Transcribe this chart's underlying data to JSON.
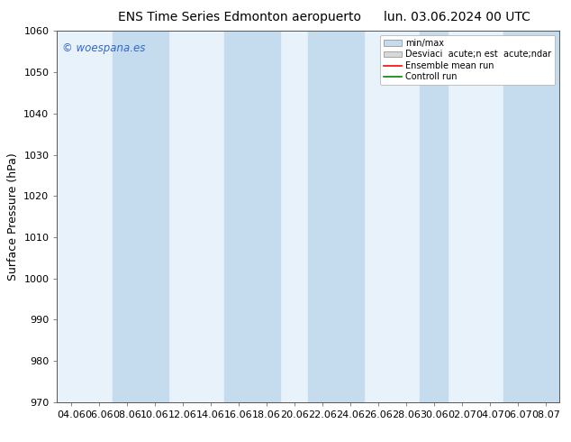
{
  "title_left": "ENS Time Series Edmonton aeropuerto",
  "title_right": "lun. 03.06.2024 00 UTC",
  "ylabel": "Surface Pressure (hPa)",
  "ylim": [
    970,
    1060
  ],
  "yticks": [
    970,
    980,
    990,
    1000,
    1010,
    1020,
    1030,
    1040,
    1050,
    1060
  ],
  "x_labels": [
    "04.06",
    "06.06",
    "08.06",
    "10.06",
    "12.06",
    "14.06",
    "16.06",
    "18.06",
    "20.06",
    "22.06",
    "24.06",
    "26.06",
    "28.06",
    "30.06",
    "02.07",
    "04.07",
    "06.07",
    "08.07"
  ],
  "background_color": "#ffffff",
  "plot_bg_color": "#e8f2fa",
  "stripe_color": "#c5dcee",
  "watermark": "© woespana.es",
  "legend_entries": [
    "min/max",
    "Desviaci  acute;n est  acute;ndar",
    "Ensemble mean run",
    "Controll run"
  ],
  "legend_colors_fill": [
    "#c5dcee",
    "#d8d8d8"
  ],
  "legend_line_colors": [
    "#ff0000",
    "#008800"
  ],
  "title_fontsize": 10,
  "ylabel_fontsize": 9,
  "tick_fontsize": 8,
  "watermark_color": "#3366cc",
  "stripe_indices": [
    2,
    3,
    7,
    8,
    11,
    12,
    15,
    16
  ],
  "title_color": "#000000"
}
